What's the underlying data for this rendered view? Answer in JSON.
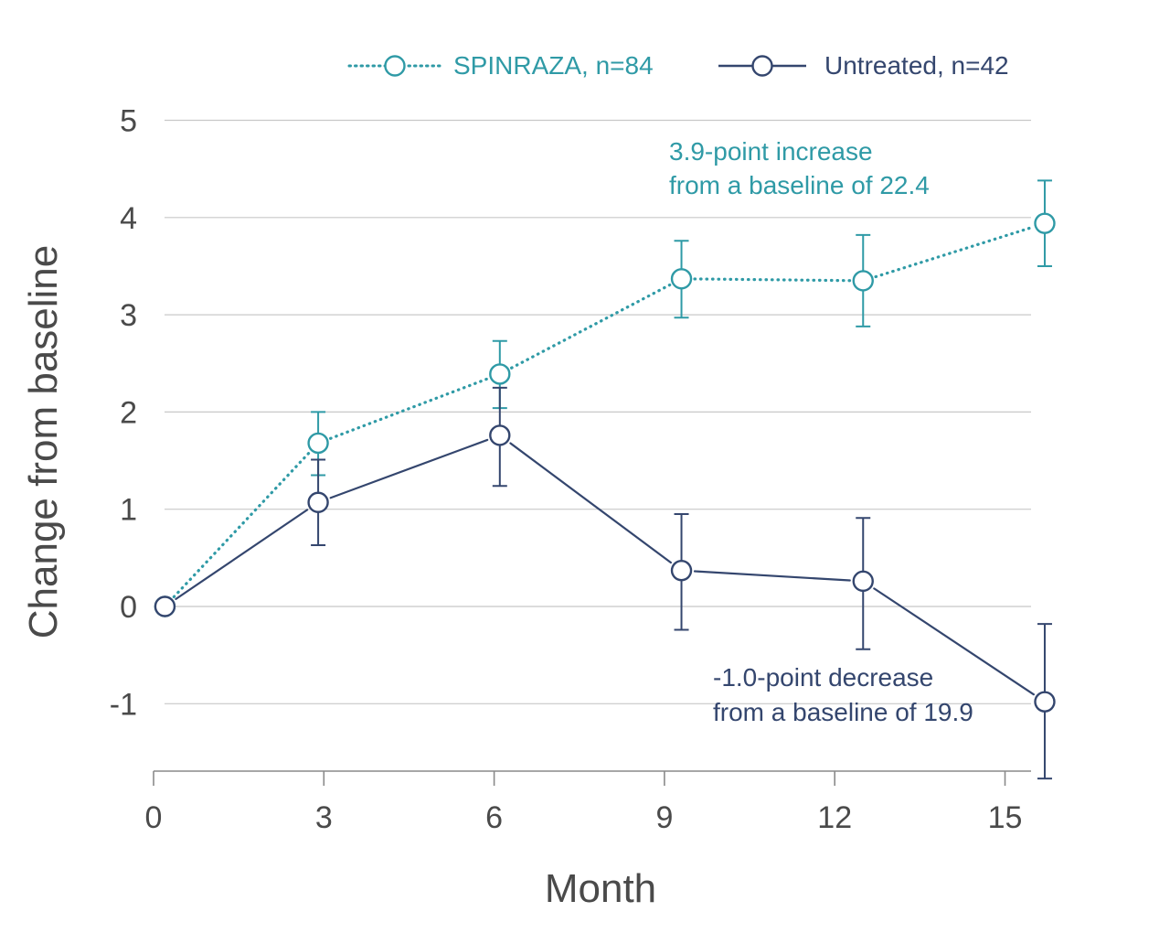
{
  "colors": {
    "treated": "#2f9aa6",
    "untreated": "#34466e",
    "grid": "#c8c8c8",
    "axis": "#8a8a8a",
    "text": "#4a4a4a"
  },
  "chart_data": {
    "type": "line",
    "title": "",
    "xlabel": "Month",
    "ylabel": "Change from baseline",
    "xlim": [
      0,
      15.3
    ],
    "ylim": [
      -1.7,
      5
    ],
    "x_ticks": [
      0,
      3,
      6,
      9,
      12,
      15
    ],
    "x_tick_labels": [
      "0",
      "3",
      "6",
      "9",
      "12",
      "15"
    ],
    "y_ticks": [
      -1,
      0,
      1,
      2,
      3,
      4,
      5
    ],
    "y_tick_labels": [
      "-1",
      "0",
      "1",
      "2",
      "3",
      "4",
      "5"
    ],
    "grid": "horizontal",
    "legend": "top-right",
    "series": [
      {
        "name": "SPINRAZA, n=84",
        "style": "dotted",
        "color": "#2f9aa6",
        "x": [
          0.2,
          2.9,
          6.1,
          9.3,
          12.5,
          15.7
        ],
        "y": [
          0,
          1.68,
          2.39,
          3.37,
          3.35,
          3.94
        ],
        "err_low": [
          null,
          1.35,
          2.04,
          2.97,
          2.88,
          3.5
        ],
        "err_high": [
          null,
          2.0,
          2.73,
          3.76,
          3.82,
          4.38
        ]
      },
      {
        "name": "Untreated, n=42",
        "style": "solid",
        "color": "#34466e",
        "x": [
          0.2,
          2.9,
          6.1,
          9.3,
          12.5,
          15.7
        ],
        "y": [
          0,
          1.07,
          1.76,
          0.37,
          0.26,
          -0.98
        ],
        "err_low": [
          null,
          0.63,
          1.24,
          -0.24,
          -0.44,
          -1.77
        ],
        "err_high": [
          null,
          1.51,
          2.25,
          0.95,
          0.91,
          -0.18
        ]
      }
    ],
    "annotations": [
      {
        "series": 0,
        "text": "3.9-point increase",
        "subtext": "from a baseline of 22.4"
      },
      {
        "series": 1,
        "text": "-1.0-point decrease",
        "subtext": "from a baseline of  19.9"
      }
    ]
  }
}
